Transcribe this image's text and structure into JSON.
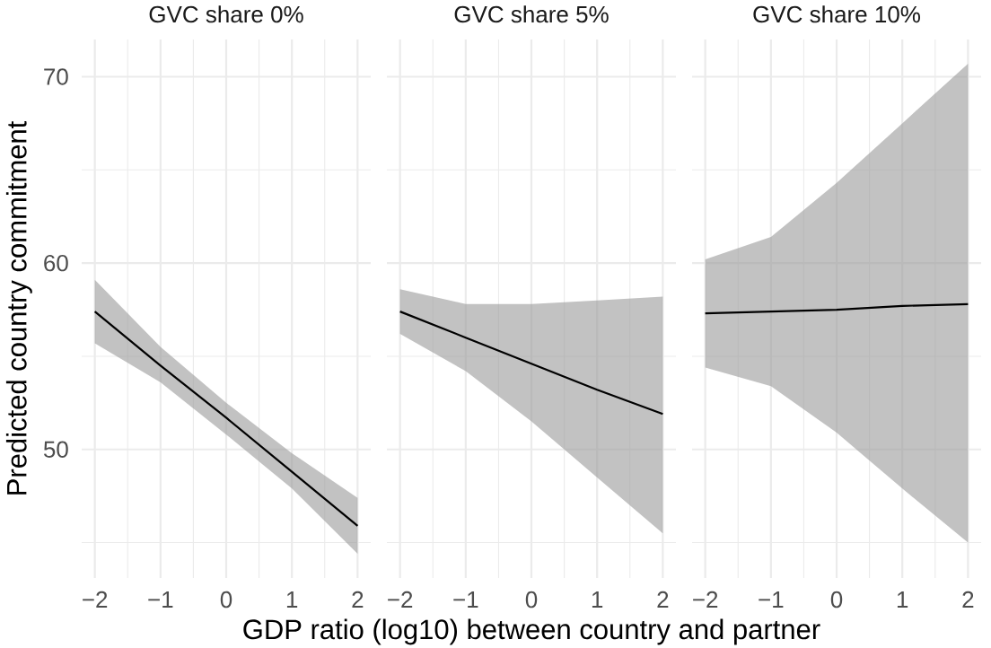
{
  "chart_data": [
    {
      "type": "line",
      "title": "GVC share 0%",
      "ylabel": "Predicted country commitment",
      "x": [
        -2,
        -1,
        0,
        1,
        2
      ],
      "series": [
        {
          "color": "#000000",
          "values": [
            57.4,
            54.5,
            51.7,
            48.8,
            45.9
          ],
          "lower": [
            55.7,
            53.6,
            50.8,
            47.9,
            44.4
          ],
          "upper": [
            59.1,
            55.5,
            52.5,
            49.8,
            47.4
          ]
        }
      ],
      "xlim": [
        -2.2,
        2.2
      ],
      "ylim": [
        43.1,
        72.0
      ],
      "xticks": [
        {
          "value": -2,
          "label": "−2"
        },
        {
          "value": -1.5,
          "label": null
        },
        {
          "value": -1,
          "label": "−1"
        },
        {
          "value": -0.5,
          "label": null
        },
        0,
        {
          "value": 0.5,
          "label": null
        },
        1,
        {
          "value": 1.5,
          "label": null
        },
        2
      ],
      "yticks": [
        {
          "value": 45,
          "label": null
        },
        50,
        {
          "value": 55,
          "label": null
        },
        60,
        {
          "value": 65,
          "label": null
        },
        70
      ],
      "grid": true
    },
    {
      "type": "line",
      "title": "GVC share 5%",
      "xlabel": "GDP ratio (log10) between country and partner",
      "x": [
        -2,
        -1,
        0,
        1,
        2
      ],
      "series": [
        {
          "color": "#000000",
          "values": [
            57.4,
            56.0,
            54.6,
            53.2,
            51.9
          ],
          "lower": [
            56.2,
            54.2,
            51.5,
            48.5,
            45.5
          ],
          "upper": [
            58.6,
            57.8,
            57.8,
            58.0,
            58.2
          ]
        }
      ],
      "xlim": [
        -2.2,
        2.2
      ],
      "ylim": [
        43.1,
        72.0
      ],
      "xticks": [
        {
          "value": -2,
          "label": "−2"
        },
        {
          "value": -1.5,
          "label": null
        },
        {
          "value": -1,
          "label": "−1"
        },
        {
          "value": -0.5,
          "label": null
        },
        0,
        {
          "value": 0.5,
          "label": null
        },
        1,
        {
          "value": 1.5,
          "label": null
        },
        2
      ],
      "yticks": [
        {
          "value": 45,
          "label": null
        },
        50,
        {
          "value": 55,
          "label": null
        },
        60,
        {
          "value": 65,
          "label": null
        },
        70
      ],
      "grid": true,
      "tick_labels": "x"
    },
    {
      "type": "line",
      "title": "GVC share 10%",
      "x": [
        -2,
        -1,
        0,
        1,
        2
      ],
      "series": [
        {
          "color": "#000000",
          "values": [
            57.3,
            57.4,
            57.5,
            57.7,
            57.8
          ],
          "lower": [
            54.4,
            53.4,
            50.9,
            47.9,
            45.0
          ],
          "upper": [
            60.2,
            61.4,
            64.3,
            67.5,
            70.7
          ]
        }
      ],
      "xlim": [
        -2.2,
        2.2
      ],
      "ylim": [
        43.1,
        72.0
      ],
      "xticks": [
        {
          "value": -2,
          "label": "−2"
        },
        {
          "value": -1.5,
          "label": null
        },
        {
          "value": -1,
          "label": "−1"
        },
        {
          "value": -0.5,
          "label": null
        },
        0,
        {
          "value": 0.5,
          "label": null
        },
        1,
        {
          "value": 1.5,
          "label": null
        },
        2
      ],
      "yticks": [
        {
          "value": 45,
          "label": null
        },
        50,
        {
          "value": 55,
          "label": null
        },
        60,
        {
          "value": 65,
          "label": null
        },
        70
      ],
      "grid": true,
      "tick_labels": "x"
    }
  ]
}
